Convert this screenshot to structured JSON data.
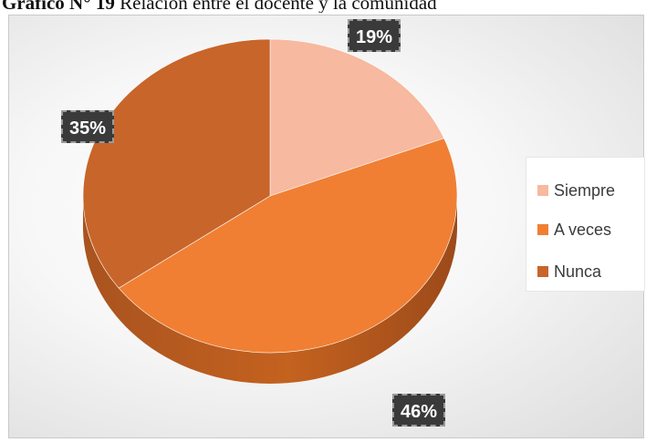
{
  "caption": {
    "lead": "Gráfico N° 19",
    "text": "Relación entre el docente y la comunidad"
  },
  "chart_data": {
    "type": "pie",
    "style": "3d",
    "categories": [
      "Siempre",
      "A veces",
      "Nunca"
    ],
    "values": [
      19,
      46,
      35
    ],
    "value_labels": [
      "19%",
      "46%",
      "35%"
    ],
    "colors": [
      "#f7b9a0",
      "#f07f33",
      "#c8652a"
    ],
    "legend_position": "right"
  }
}
